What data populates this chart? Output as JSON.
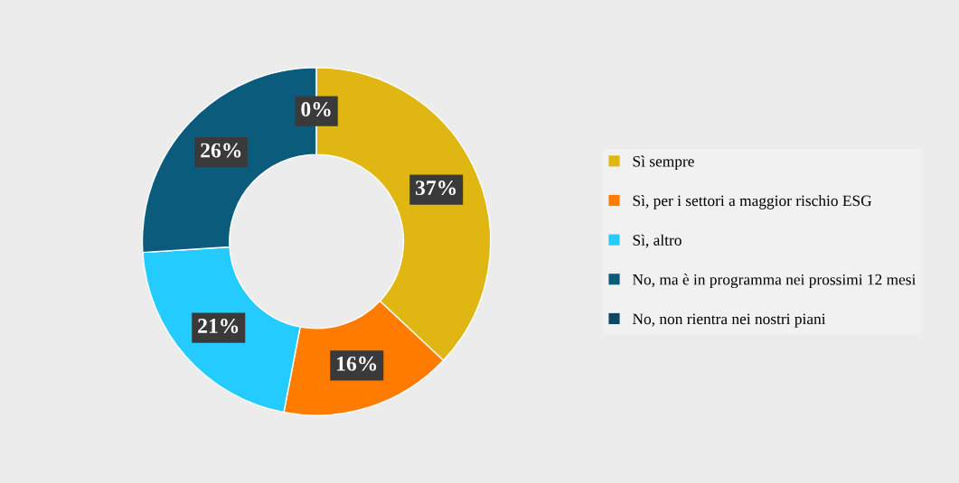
{
  "chart_data": {
    "type": "donut",
    "categories": [
      "Sì sempre",
      "Sì, per i settori a maggior rischio ESG",
      "Sì, altro",
      "No, ma è in programma nei prossimi 12 mesi",
      "No, non rientra nei nostri piani"
    ],
    "values": [
      37,
      16,
      21,
      26,
      0
    ],
    "colors": [
      "#e0b613",
      "#ff7c00",
      "#24cbff",
      "#0b5b7c",
      "#0a4866"
    ],
    "value_labels": [
      "37%",
      "16%",
      "21%",
      "26%",
      "0%"
    ],
    "legend": "right"
  }
}
